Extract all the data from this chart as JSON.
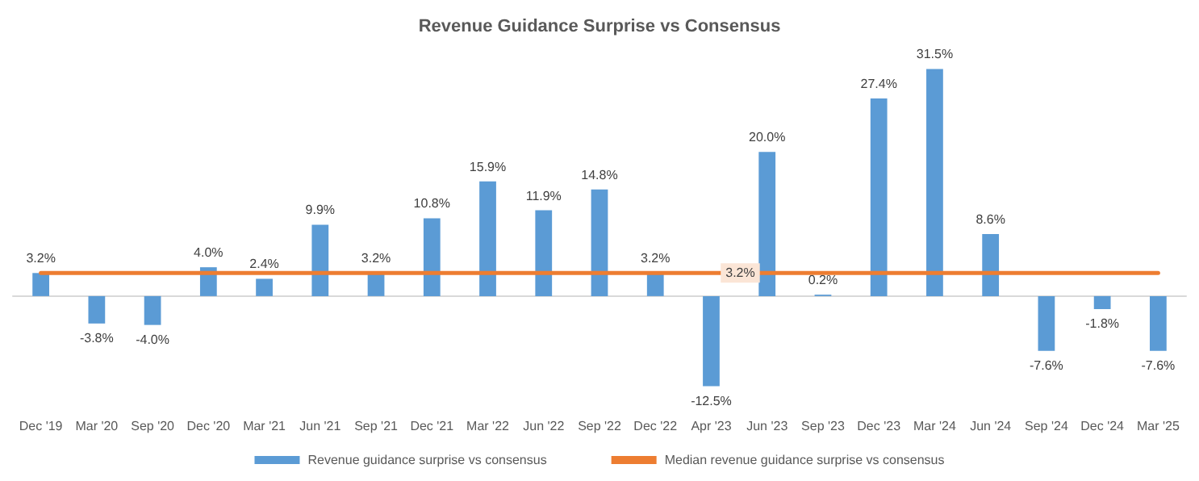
{
  "chart_data": {
    "type": "bar",
    "title": "Revenue Guidance Surprise vs Consensus",
    "categories": [
      "Dec '19",
      "Mar '20",
      "Sep '20",
      "Dec '20",
      "Mar '21",
      "Jun '21",
      "Sep '21",
      "Dec '21",
      "Mar '22",
      "Jun '22",
      "Sep '22",
      "Dec '22",
      "Apr '23",
      "Jun '23",
      "Sep '23",
      "Dec '23",
      "Mar '24",
      "Jun '24",
      "Sep '24",
      "Dec '24",
      "Mar '25"
    ],
    "series": [
      {
        "name": "Revenue guidance surprise vs consensus",
        "color": "#5b9bd5",
        "values": [
          3.2,
          -3.8,
          -4.0,
          4.0,
          2.4,
          9.9,
          3.2,
          10.8,
          15.9,
          11.9,
          14.8,
          3.2,
          -12.5,
          20.0,
          0.2,
          27.4,
          31.5,
          8.6,
          -7.6,
          -1.8,
          -7.6
        ],
        "value_labels": [
          "3.2%",
          "-3.8%",
          "-4.0%",
          "4.0%",
          "2.4%",
          "9.9%",
          "3.2%",
          "10.8%",
          "15.9%",
          "11.9%",
          "14.8%",
          "3.2%",
          "-12.5%",
          "20.0%",
          "0.2%",
          "27.4%",
          "31.5%",
          "8.6%",
          "-7.6%",
          "-1.8%",
          "-7.6%"
        ]
      },
      {
        "name": "Median revenue guidance surprise vs consensus",
        "type": "line",
        "color": "#ed7d31",
        "values": [
          3.2,
          3.2,
          3.2,
          3.2,
          3.2,
          3.2,
          3.2,
          3.2,
          3.2,
          3.2,
          3.2,
          3.2,
          3.2,
          3.2,
          3.2,
          3.2,
          3.2,
          3.2,
          3.2,
          3.2,
          3.2
        ],
        "value_labels": [
          null,
          null,
          null,
          null,
          null,
          null,
          null,
          null,
          null,
          null,
          null,
          null,
          "3.2%",
          null,
          null,
          null,
          null,
          null,
          null,
          null,
          null
        ]
      }
    ],
    "legend": "bottom",
    "grid": false,
    "marker": "none"
  }
}
